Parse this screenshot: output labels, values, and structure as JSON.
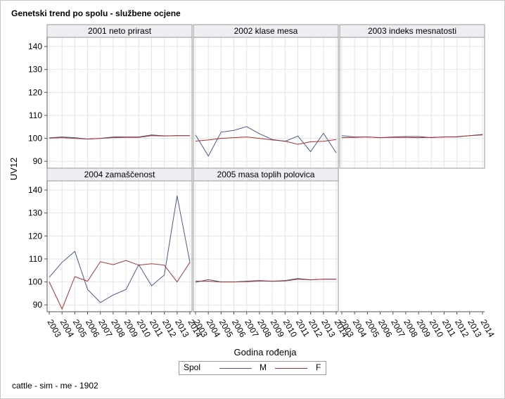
{
  "title": "Genetski trend po spolu - službene ocjene",
  "footer": "cattle - sim - me - 1902",
  "legend": {
    "title": "Spol",
    "entries": [
      {
        "label": "M",
        "color": "#4a5a8e"
      },
      {
        "label": "F",
        "color": "#a83232"
      }
    ]
  },
  "chart_data": {
    "type": "line",
    "layout": "panel-grid",
    "xlabel": "Godina rođenja",
    "ylabel": "UV12",
    "x": [
      2003,
      2004,
      2005,
      2006,
      2007,
      2008,
      2009,
      2010,
      2011,
      2012,
      2013,
      2014
    ],
    "ylim": [
      87,
      144
    ],
    "yticks": [
      90,
      100,
      110,
      120,
      130,
      140
    ],
    "grid": true,
    "legend_position": "bottom",
    "panels": [
      {
        "title": "2001 neto prirast",
        "series": [
          {
            "name": "M",
            "values": [
              100.2,
              100.6,
              100.3,
              99.7,
              100.0,
              100.6,
              100.6,
              100.6,
              101.5,
              101.1,
              101.2,
              101.2
            ]
          },
          {
            "name": "F",
            "values": [
              100.1,
              100.3,
              100.0,
              99.7,
              100.0,
              100.3,
              100.4,
              100.4,
              101.2,
              101.0,
              101.2,
              101.2
            ]
          }
        ]
      },
      {
        "title": "2002 klase mesa",
        "series": [
          {
            "name": "M",
            "values": [
              101.5,
              92.3,
              102.7,
              103.5,
              105.1,
              102.0,
              99.5,
              98.7,
              101.0,
              94.2,
              102.2,
              93.7
            ]
          },
          {
            "name": "F",
            "values": [
              98.8,
              99.3,
              100.0,
              100.3,
              100.6,
              100.0,
              99.3,
              98.8,
              97.4,
              98.5,
              98.7,
              99.5
            ]
          }
        ]
      },
      {
        "title": "2003 indeks mesnatosti",
        "series": [
          {
            "name": "M",
            "values": [
              101.2,
              100.6,
              100.6,
              100.3,
              100.6,
              100.8,
              100.8,
              100.3,
              100.6,
              100.6,
              101.2,
              101.7
            ]
          },
          {
            "name": "F",
            "values": [
              100.3,
              100.4,
              100.6,
              100.3,
              100.4,
              100.4,
              100.3,
              100.4,
              100.6,
              100.7,
              101.2,
              101.5
            ]
          }
        ]
      },
      {
        "title": "2004 zamaščenost",
        "series": [
          {
            "name": "M",
            "values": [
              102.0,
              108.5,
              113.3,
              96.7,
              91.0,
              94.3,
              96.7,
              107.5,
              98.3,
              103.0,
              137.5,
              108.5
            ]
          },
          {
            "name": "F",
            "values": [
              100.0,
              88.2,
              102.3,
              100.3,
              108.8,
              107.5,
              109.3,
              107.3,
              107.9,
              107.3,
              100.0,
              108.5
            ]
          }
        ]
      },
      {
        "title": "2005 masa toplih polovica",
        "series": [
          {
            "name": "M",
            "values": [
              99.8,
              101.0,
              100.0,
              100.0,
              100.3,
              100.6,
              100.3,
              100.6,
              101.5,
              100.9,
              101.2,
              101.2
            ]
          },
          {
            "name": "F",
            "values": [
              100.3,
              100.3,
              100.0,
              100.0,
              100.1,
              100.4,
              100.3,
              100.4,
              101.2,
              100.9,
              101.2,
              101.2
            ]
          }
        ]
      }
    ]
  }
}
